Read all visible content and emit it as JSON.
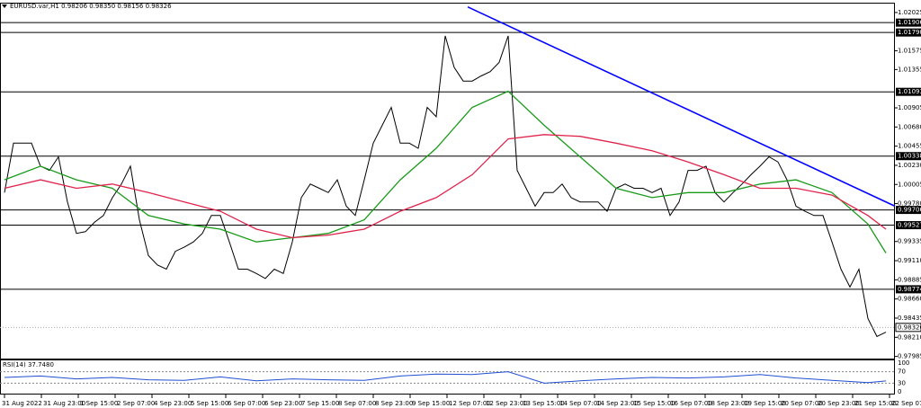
{
  "chart_data": {
    "type": "line",
    "title": "EURUSD.var,H1  0.98206 0.98350 0.98156 0.98326",
    "xlim": [
      -0.5,
      99
    ],
    "ylim": [
      0.9796,
      1.0214
    ],
    "yticks": [
      {
        "value": 1.02025,
        "label": "1.02025"
      },
      {
        "value": 1.01575,
        "label": "1.01575"
      },
      {
        "value": 1.01355,
        "label": "1.01355"
      },
      {
        "value": 1.00905,
        "label": "1.00905"
      },
      {
        "value": 1.0068,
        "label": "1.00680"
      },
      {
        "value": 1.00455,
        "label": "1.00455"
      },
      {
        "value": 1.0023,
        "label": "1.00230"
      },
      {
        "value": 1.00005,
        "label": "1.00005"
      },
      {
        "value": 0.9978,
        "label": "0.99780"
      },
      {
        "value": 0.99335,
        "label": "0.99335"
      },
      {
        "value": 0.9911,
        "label": "0.99110"
      },
      {
        "value": 0.98885,
        "label": "0.98885"
      },
      {
        "value": 0.9866,
        "label": "0.98660"
      },
      {
        "value": 0.98435,
        "label": "0.98435"
      },
      {
        "value": 0.9821,
        "label": "0.98210"
      },
      {
        "value": 0.97985,
        "label": "0.97985"
      }
    ],
    "xticks": [
      {
        "value": 0,
        "label": "31 Aug 2022"
      },
      {
        "value": 4.1,
        "label": "31 Aug 23:00"
      },
      {
        "value": 8.2,
        "label": "1 Sep 15:00"
      },
      {
        "value": 12.3,
        "label": "2 Sep 07:00"
      },
      {
        "value": 16.4,
        "label": "4 Sep 23:00"
      },
      {
        "value": 20.5,
        "label": "5 Sep 15:00"
      },
      {
        "value": 24.6,
        "label": "6 Sep 07:00"
      },
      {
        "value": 28.7,
        "label": "6 Sep 23:00"
      },
      {
        "value": 32.8,
        "label": "7 Sep 15:00"
      },
      {
        "value": 36.9,
        "label": "8 Sep 07:00"
      },
      {
        "value": 41,
        "label": "8 Sep 23:00"
      },
      {
        "value": 45.1,
        "label": "9 Sep 15:00"
      },
      {
        "value": 49.2,
        "label": "12 Sep 07:00"
      },
      {
        "value": 53.3,
        "label": "12 Sep 23:00"
      },
      {
        "value": 57.4,
        "label": "13 Sep 15:00"
      },
      {
        "value": 61.5,
        "label": "14 Sep 07:00"
      },
      {
        "value": 65.6,
        "label": "14 Sep 23:00"
      },
      {
        "value": 69.7,
        "label": "15 Sep 15:00"
      },
      {
        "value": 73.8,
        "label": "16 Sep 07:00"
      },
      {
        "value": 77.9,
        "label": "18 Sep 23:00"
      },
      {
        "value": 82,
        "label": "19 Sep 15:00"
      },
      {
        "value": 86.1,
        "label": "20 Sep 07:00"
      },
      {
        "value": 90.2,
        "label": "20 Sep 23:00"
      },
      {
        "value": 94.3,
        "label": "21 Sep 15:00"
      },
      {
        "value": 98.4,
        "label": "22 Sep 07:00"
      }
    ],
    "series": [
      {
        "color": "#000000",
        "values": [
          0.9991,
          1.0049,
          1.0049,
          1.0049,
          1.0022,
          1.0017,
          1.0033,
          0.998,
          0.9943,
          0.9945,
          0.9956,
          0.9964,
          0.9985,
          1.0001,
          1.0022,
          0.9959,
          0.9917,
          0.9906,
          0.9901,
          0.9922,
          0.9927,
          0.9933,
          0.9943,
          0.9964,
          0.9964,
          0.9933,
          0.9901,
          0.9901,
          0.9896,
          0.989,
          0.9901,
          0.9896,
          0.9933,
          0.9985,
          1.0001,
          0.9996,
          0.9991,
          1.0006,
          0.9975,
          0.9964,
          1.0006,
          1.0049,
          1.007,
          1.0091,
          1.0049,
          1.0049,
          1.0043,
          1.0091,
          1.008,
          1.0175,
          1.0138,
          1.0122,
          1.0122,
          1.0128,
          1.0133,
          1.0144,
          1.0175,
          1.0017,
          0.9996,
          0.9975,
          0.9991,
          0.9991,
          1.0001,
          0.9985,
          0.998,
          0.998,
          0.998,
          0.9969,
          0.9996,
          1.0001,
          0.9996,
          0.9996,
          0.9991,
          0.9996,
          0.9964,
          0.998,
          1.0017,
          1.0017,
          1.0022,
          0.9991,
          0.998,
          0.9991,
          1.0001,
          1.0012,
          1.0022,
          1.0033,
          1.0027,
          1.0006,
          0.9975,
          0.9969,
          0.9964,
          0.9964,
          0.9933,
          0.9901,
          0.988,
          0.9901,
          0.9843,
          0.9822,
          0.9827
        ]
      },
      {
        "color": "#1a9a1a",
        "x": [
          0,
          4,
          8,
          12,
          16,
          20,
          24,
          28,
          32,
          36,
          40,
          44,
          48,
          52,
          56,
          60,
          64,
          68,
          72,
          76,
          80,
          84,
          88,
          92,
          96,
          98
        ],
        "values": [
          1.0006,
          1.0022,
          1.0006,
          0.9996,
          0.9964,
          0.9954,
          0.9948,
          0.9933,
          0.9938,
          0.9943,
          0.9959,
          1.0006,
          1.0043,
          1.0091,
          1.011,
          1.007,
          1.0033,
          0.9996,
          0.9985,
          0.9991,
          0.9991,
          1.0001,
          1.0006,
          0.9991,
          0.9954,
          0.992
        ]
      },
      {
        "color": "#e0234b",
        "x": [
          0,
          4,
          8,
          12,
          16,
          20,
          24,
          28,
          32,
          36,
          40,
          44,
          48,
          52,
          56,
          60,
          64,
          68,
          72,
          76,
          80,
          84,
          88,
          92,
          96,
          98
        ],
        "values": [
          0.9996,
          1.0006,
          0.9996,
          1.0001,
          0.9991,
          0.998,
          0.9969,
          0.9948,
          0.9938,
          0.9941,
          0.9948,
          0.9969,
          0.9985,
          1.0012,
          1.0054,
          1.0059,
          1.0057,
          1.0049,
          1.004,
          1.0027,
          1.0012,
          0.9996,
          0.9996,
          0.9988,
          0.9964,
          0.9948
        ]
      }
    ],
    "trendline": {
      "color": "#0000ff",
      "x": [
        51.5,
        99
      ],
      "values": [
        1.0209,
        0.9975
      ]
    },
    "levels": [
      1.01906,
      {
        "value": 1.0179,
        "label": "1.01790"
      },
      1.01093,
      1.00338,
      0.99706,
      0.99527,
      0.98774
    ],
    "current_price": 0.98326,
    "rsi": {
      "title": "RSI(14) 37.7480",
      "ylim": [
        0,
        100
      ],
      "yticks": [
        100,
        70,
        30,
        0
      ],
      "color": "#1f4fd0",
      "x": [
        0,
        4,
        8,
        12,
        16,
        20,
        24,
        28,
        32,
        36,
        40,
        44,
        48,
        52,
        56,
        60,
        64,
        68,
        72,
        76,
        80,
        84,
        88,
        92,
        96,
        98
      ],
      "values": [
        50,
        55,
        45,
        50,
        42,
        40,
        52,
        38,
        45,
        42,
        40,
        55,
        62,
        60,
        70,
        30,
        38,
        45,
        50,
        48,
        52,
        60,
        48,
        40,
        32,
        37.748
      ]
    }
  }
}
